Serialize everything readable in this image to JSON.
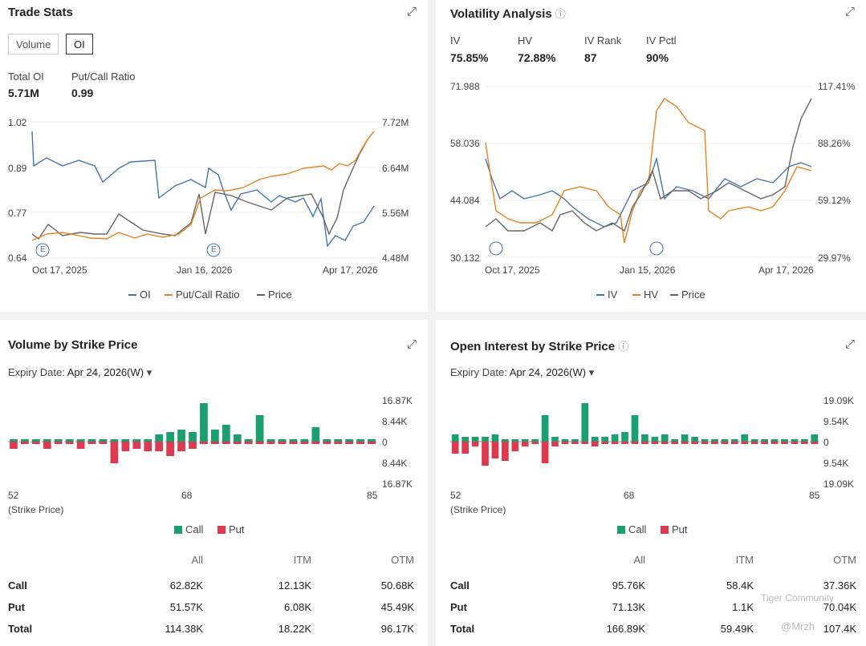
{
  "ts": {
    "title": "Trade Stats",
    "tabs": [
      "Volume",
      "OI"
    ],
    "stat1_label": "Total OI",
    "stat1_val": "5.71M",
    "stat2_label": "Put/Call Ratio",
    "stat2_val": "0.99",
    "yl": [
      "1.02",
      "0.89",
      "0.77",
      "0.64"
    ],
    "yr": [
      "7.72M",
      "6.64M",
      "5.56M",
      "4.48M"
    ],
    "x": [
      "Oct 17, 2025",
      "Jan 16, 2026",
      "Apr 17, 2026"
    ],
    "legend": [
      "OI",
      "Put/Call Ratio",
      "Price"
    ],
    "earn": "E"
  },
  "va": {
    "title": "Volatility Analysis",
    "stats": [
      {
        "l": "IV",
        "v": "75.85%"
      },
      {
        "l": "HV",
        "v": "72.88%"
      },
      {
        "l": "IV Rank",
        "v": "87"
      },
      {
        "l": "IV Pctl",
        "v": "90%"
      }
    ],
    "yl": [
      "71.988",
      "58.036",
      "44.084",
      "30.132"
    ],
    "yr": [
      "117.41%",
      "88.26%",
      "59.12%",
      "29.97%"
    ],
    "x": [
      "Oct 17, 2025",
      "Jan 15, 2026",
      "Apr 17, 2026"
    ],
    "legend": [
      "IV",
      "HV",
      "Price"
    ]
  },
  "vol": {
    "title": "Volume by Strike Price",
    "expiry_label": "Expiry Date:",
    "expiry": "Apr 24, 2026(W)",
    "y": [
      "16.87K",
      "8.44K",
      "0",
      "8.44K",
      "16.87K"
    ],
    "x": [
      "52",
      "68",
      "85"
    ],
    "xl": "(Strike Price)",
    "legend": [
      "Call",
      "Put"
    ],
    "head": [
      "All",
      "ITM",
      "OTM"
    ],
    "rows": [
      [
        "Call",
        "62.82K",
        "12.13K",
        "50.68K"
      ],
      [
        "Put",
        "51.57K",
        "6.08K",
        "45.49K"
      ],
      [
        "Total",
        "114.38K",
        "18.22K",
        "96.17K"
      ]
    ],
    "call": [
      1,
      1,
      1,
      1,
      1,
      1,
      1,
      1,
      1,
      1,
      1,
      1,
      1,
      3,
      4,
      5,
      4,
      16,
      5,
      7,
      3,
      1,
      11,
      1,
      1,
      1,
      1,
      6,
      1,
      1,
      1,
      1,
      1
    ],
    "put": [
      3,
      1,
      1,
      3,
      1,
      1,
      3,
      1,
      1,
      9,
      4,
      3,
      4,
      4,
      6,
      4,
      3,
      1,
      1,
      1,
      1,
      1,
      1,
      1,
      1,
      1,
      1,
      1,
      1,
      1,
      1,
      1,
      1
    ]
  },
  "oi": {
    "title": "Open Interest by Strike Price",
    "expiry_label": "Expiry Date:",
    "expiry": "Apr 24, 2026(W)",
    "y": [
      "19.09K",
      "9.54K",
      "0",
      "9.54K",
      "19.09K"
    ],
    "x": [
      "52",
      "68",
      "85"
    ],
    "xl": "(Strike Price)",
    "legend": [
      "Call",
      "Put"
    ],
    "head": [
      "All",
      "ITM",
      "OTM"
    ],
    "rows": [
      [
        "Call",
        "95.76K",
        "58.4K",
        "37.36K"
      ],
      [
        "Put",
        "71.13K",
        "1.1K",
        "70.04K"
      ],
      [
        "Total",
        "166.89K",
        "59.49K",
        "107.4K"
      ]
    ],
    "call": [
      3,
      2,
      2,
      2,
      3,
      1,
      1,
      1,
      1,
      11,
      2,
      1,
      1,
      16,
      2,
      2,
      3,
      4,
      11,
      3,
      2,
      3,
      1,
      3,
      2,
      1,
      1,
      1,
      1,
      3,
      1,
      1,
      1,
      1,
      1,
      1,
      3
    ],
    "put": [
      5,
      5,
      2,
      10,
      7,
      8,
      4,
      2,
      1,
      9,
      2,
      1,
      1,
      1,
      2,
      1,
      1,
      1,
      1,
      1,
      1,
      1,
      1,
      1,
      1,
      1,
      1,
      1,
      1,
      1,
      1,
      1,
      1,
      1,
      1,
      1,
      1
    ]
  },
  "colors": {
    "oi": "#4a73b5",
    "pcr": "#e8821e",
    "price": "#666",
    "call": "#1aa06e",
    "put": "#e0394f"
  },
  "watermark": "Tiger Community",
  "handle": "@Mrzh"
}
